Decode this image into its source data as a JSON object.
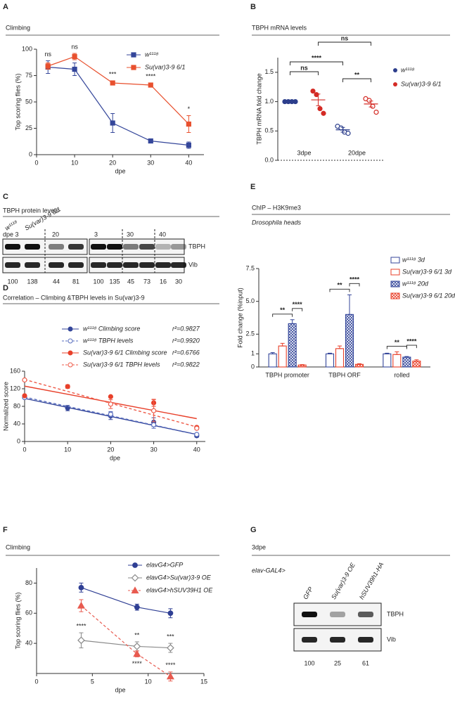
{
  "panel_labels": [
    "A",
    "B",
    "C",
    "D",
    "E",
    "F",
    "G"
  ],
  "chart_data": [
    {
      "type": "line",
      "title": "Climbing",
      "xlabel": "dpe",
      "ylabel": "Top scoring flies (%)",
      "x": [
        3,
        10,
        20,
        30,
        40
      ],
      "xlim": [
        0,
        44
      ],
      "xticks": [
        0,
        10,
        20,
        30,
        40
      ],
      "ylim": [
        0,
        100
      ],
      "yticks": [
        0,
        25,
        50,
        75,
        100
      ],
      "series": [
        {
          "name": "w¹¹¹⁸",
          "color": "#34469a",
          "marker": "square",
          "filled": true,
          "dashed": false,
          "values": [
            83,
            81,
            30,
            13,
            9
          ],
          "errors": [
            6,
            6,
            9,
            2,
            3
          ]
        },
        {
          "name": "Su(var)3-9 6/1",
          "color": "#e8502e",
          "marker": "square",
          "filled": true,
          "dashed": false,
          "values": [
            84,
            93,
            68,
            66,
            29
          ],
          "errors": [
            3,
            3,
            2,
            2,
            8
          ]
        }
      ],
      "annotations": [
        {
          "x": 3,
          "text": "ns"
        },
        {
          "x": 10,
          "text": "ns"
        },
        {
          "x": 20,
          "text": "***"
        },
        {
          "x": 30,
          "text": "****"
        },
        {
          "x": 40,
          "text": "*"
        }
      ]
    },
    {
      "type": "dotplot",
      "title": "TBPH mRNA levels",
      "ylabel": "TBPH mRNA fold change",
      "categories": [
        "3dpe",
        "20dpe"
      ],
      "ylim": [
        0,
        1.75
      ],
      "yticks": [
        {
          "value": 0,
          "label": "0.0"
        },
        0.5,
        {
          "value": 1,
          "label": "1.0"
        },
        1.5
      ],
      "series": [
        {
          "name": "w¹¹¹⁸",
          "color": "#2c3e8c",
          "points": [
            [
              1,
              1,
              1,
              1
            ],
            [
              0.58,
              0.55,
              0.48,
              0.46
            ]
          ],
          "means": [
            1,
            0.52
          ],
          "errors": [
            0,
            0.04
          ]
        },
        {
          "name": "Su(var)3-9 6/1",
          "color": "#d42b25",
          "points": [
            [
              1.18,
              1.12,
              0.88,
              0.8
            ],
            [
              1.05,
              1.02,
              0.92,
              0.82
            ]
          ],
          "means": [
            1.03,
            0.96
          ],
          "errors": [
            0.1,
            0.05
          ]
        }
      ],
      "comparisons": [
        {
          "groups": [
            [
              0,
              0
            ],
            [
              1,
              0
            ]
          ],
          "label": "ns"
        },
        {
          "groups": [
            [
              0,
              0
            ],
            [
              0,
              1
            ]
          ],
          "label": "****"
        },
        {
          "groups": [
            [
              1,
              0
            ],
            [
              1,
              1
            ]
          ],
          "label": "ns"
        },
        {
          "groups": [
            [
              0,
              1
            ],
            [
              1,
              1
            ]
          ],
          "label": "**"
        }
      ]
    },
    {
      "type": "scatter",
      "title": "Correlation – Climbing &TBPH levels in Su(var)3-9",
      "xlabel": "dpe",
      "ylabel": "Normalized score",
      "xlim": [
        0,
        42
      ],
      "xticks": [
        0,
        10,
        20,
        30,
        40
      ],
      "ylim": [
        0,
        160
      ],
      "yticks": [
        0,
        40,
        80,
        120,
        160
      ],
      "series": [
        {
          "name": "w¹¹¹⁸ Climbing score",
          "r2": "r²=0.9827",
          "color": "#34469a",
          "filled": true,
          "dashed": false,
          "x": [
            0,
            10,
            20,
            30,
            40
          ],
          "values": [
            100,
            76,
            58,
            44,
            13
          ],
          "errors": [
            2,
            6,
            8,
            10,
            3
          ],
          "fit": {
            "intercept": 98,
            "slope": -2.05
          }
        },
        {
          "name": "w¹¹¹⁸ TBPH levels",
          "r2": "r²=0.9920",
          "color": "#5a6fbf",
          "filled": false,
          "dashed": true,
          "x": [
            0,
            20,
            30,
            40
          ],
          "values": [
            100,
            62,
            38,
            16
          ],
          "errors": [
            0,
            6,
            8,
            3
          ],
          "fit": {
            "intercept": 101,
            "slope": -2.12
          }
        },
        {
          "name": "Su(var)3-9 6/1 Climbing score",
          "r2": "r²=0.6766",
          "color": "#e8402a",
          "filled": true,
          "dashed": false,
          "x": [
            0,
            10,
            20,
            30,
            40
          ],
          "values": [
            104,
            125,
            102,
            88,
            32
          ],
          "errors": [
            3,
            4,
            2,
            8,
            3
          ],
          "fit": {
            "intercept": 126,
            "slope": -1.85
          }
        },
        {
          "name": "Su(var)3-9 6/1 TBPH levels",
          "r2": "r²=0.9822",
          "color": "#ee5a48",
          "filled": false,
          "dashed": true,
          "x": [
            0,
            20,
            30,
            40
          ],
          "values": [
            140,
            85,
            70,
            30
          ],
          "errors": [
            0,
            10,
            25,
            3
          ],
          "fit": {
            "intercept": 141,
            "slope": -2.7
          }
        }
      ]
    },
    {
      "type": "bar",
      "title": "ChIP – H3K9me3",
      "subtitle": "Drosophila heads",
      "ylabel": "Fold change (%input)",
      "categories": [
        "TBPH promoter",
        "TBPH ORF",
        "rolled"
      ],
      "ylim": [
        0,
        7.5
      ],
      "yticks": [
        0,
        1,
        2.5,
        {
          "value": 5,
          "label": "5.0"
        },
        7.5
      ],
      "series": [
        {
          "name": "w¹¹¹⁸ 3d",
          "color": "#34469a",
          "hatch": false,
          "values": [
            1.0,
            1.0,
            1.0
          ],
          "errors": [
            0.1,
            0.05,
            0.05
          ]
        },
        {
          "name": "Su(var)3-9 6/1 3d",
          "color": "#e8402a",
          "hatch": false,
          "values": [
            1.6,
            1.4,
            0.95
          ],
          "errors": [
            0.2,
            0.2,
            0.2
          ]
        },
        {
          "name": "w¹¹¹⁸ 20d",
          "color": "#34469a",
          "hatch": true,
          "values": [
            3.3,
            4.0,
            0.75
          ],
          "errors": [
            0.3,
            1.5,
            0.05
          ]
        },
        {
          "name": "Su(var)3-9 6/1 20d",
          "color": "#e8402a",
          "hatch": true,
          "values": [
            0.15,
            0.2,
            0.45
          ],
          "errors": [
            0.03,
            0.05,
            0.1
          ]
        }
      ],
      "comparisons": [
        [
          {
            "pair": [
              0,
              2
            ],
            "label": "**"
          },
          {
            "pair": [
              2,
              3
            ],
            "label": "****"
          }
        ],
        [
          {
            "pair": [
              0,
              2
            ],
            "label": "**"
          },
          {
            "pair": [
              2,
              3
            ],
            "label": "****"
          }
        ],
        [
          {
            "pair": [
              0,
              2
            ],
            "label": "**"
          },
          {
            "pair": [
              2,
              3
            ],
            "label": "****"
          }
        ]
      ]
    },
    {
      "type": "line",
      "title": "Climbing",
      "xlabel": "dpe",
      "ylabel": "Top scoring flies (%)",
      "x": [
        4,
        9,
        12
      ],
      "xlim": [
        0,
        15
      ],
      "xticks": [
        0,
        5,
        10,
        15
      ],
      "ylim": [
        20,
        90
      ],
      "yticks": [
        40,
        60,
        80
      ],
      "series": [
        {
          "name": "elavG4>GFP",
          "color": "#2f3f94",
          "marker": "circle",
          "filled": true,
          "dashed": false,
          "values": [
            77,
            64,
            60
          ],
          "errors": [
            3,
            2,
            3
          ]
        },
        {
          "name": "elavG4>Su(var)3-9 OE",
          "color": "#8a8a8a",
          "marker": "diamond",
          "filled": false,
          "dashed": false,
          "values": [
            42,
            38,
            37
          ],
          "errors": [
            5,
            3,
            3
          ]
        },
        {
          "name": "elavG4>hSUV39H1 OE",
          "color": "#e85a4f",
          "marker": "triangle",
          "filled": true,
          "dashed": true,
          "values": [
            65,
            33,
            18
          ],
          "errors": [
            4,
            2,
            3
          ]
        }
      ],
      "annotations": [
        {
          "x": 4,
          "series": 1,
          "text": "****"
        },
        {
          "x": 9,
          "series": 1,
          "text": "**"
        },
        {
          "x": 12,
          "series": 1,
          "text": "***"
        },
        {
          "x": 9,
          "series": 2,
          "text": "****"
        },
        {
          "x": 12,
          "series": 2,
          "text": "****"
        }
      ]
    }
  ],
  "blots": [
    {
      "title": "TBPH protein levels",
      "genotypes": [
        "w¹¹¹⁸",
        "Su(var)3-9 6/1"
      ],
      "timepoints": [
        "dpe 3",
        "20",
        "3",
        "30",
        "40"
      ],
      "bands": [
        "TBPH",
        "Vib"
      ],
      "quantification": [
        100,
        138,
        44,
        81,
        100,
        135,
        45,
        73,
        16,
        30
      ]
    },
    {
      "title": "3dpe",
      "driver": "elav-GAL4>",
      "lanes": [
        "GFP",
        "Su(var)3-9 OE",
        "hSUV39h1-HA"
      ],
      "bands": [
        "TBPH",
        "Vib"
      ],
      "quantification": [
        100,
        25,
        61
      ]
    }
  ]
}
